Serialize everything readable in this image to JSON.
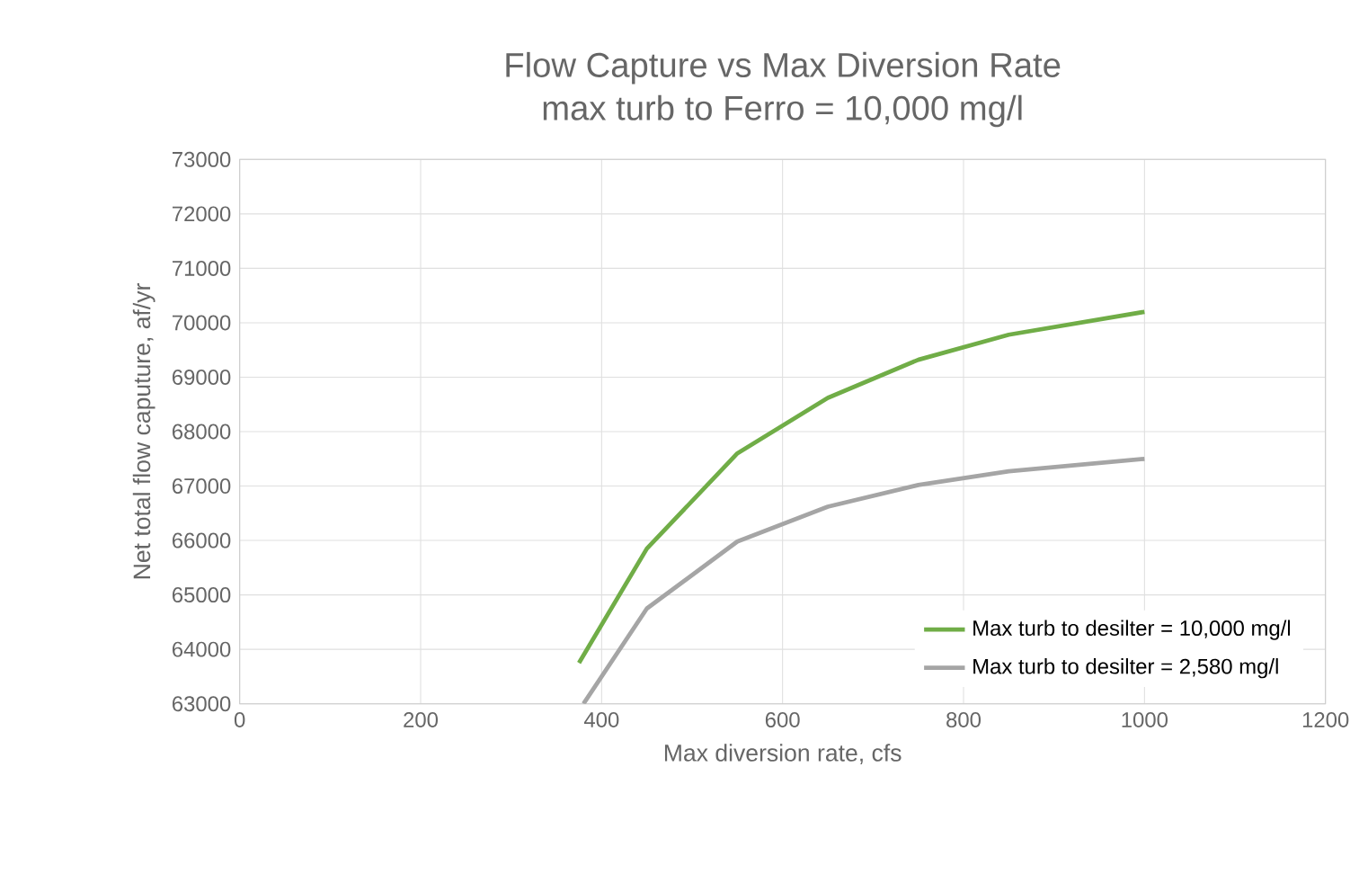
{
  "chart_data": {
    "type": "line",
    "title": "Flow Capture vs Max Diversion Rate",
    "subtitle": "max turb to Ferro = 10,000 mg/l",
    "xlabel": "Max diversion rate, cfs",
    "ylabel": "Net total flow caputure, af/yr",
    "series": [
      {
        "name": "Max turb to desilter = 10,000 mg/l",
        "color": "#70ad47",
        "x": [
          375,
          450,
          550,
          650,
          750,
          850,
          1000
        ],
        "values": [
          63750,
          65850,
          67600,
          68620,
          69320,
          69780,
          70200
        ]
      },
      {
        "name": "Max turb to desilter = 2,580 mg/l",
        "color": "#a5a5a5",
        "x": [
          380,
          450,
          550,
          650,
          750,
          850,
          1000
        ],
        "values": [
          63000,
          64750,
          65980,
          66620,
          67020,
          67270,
          67500
        ]
      }
    ],
    "xlim": [
      0,
      1200
    ],
    "xticks": [
      0,
      200,
      400,
      600,
      800,
      1000,
      1200
    ],
    "ylim": [
      63000,
      73000
    ],
    "yticks": [
      63000,
      64000,
      65000,
      66000,
      67000,
      68000,
      69000,
      70000,
      71000,
      72000,
      73000
    ],
    "grid": true,
    "legend": "bottom right",
    "marker": "none",
    "line_style": "solid"
  }
}
